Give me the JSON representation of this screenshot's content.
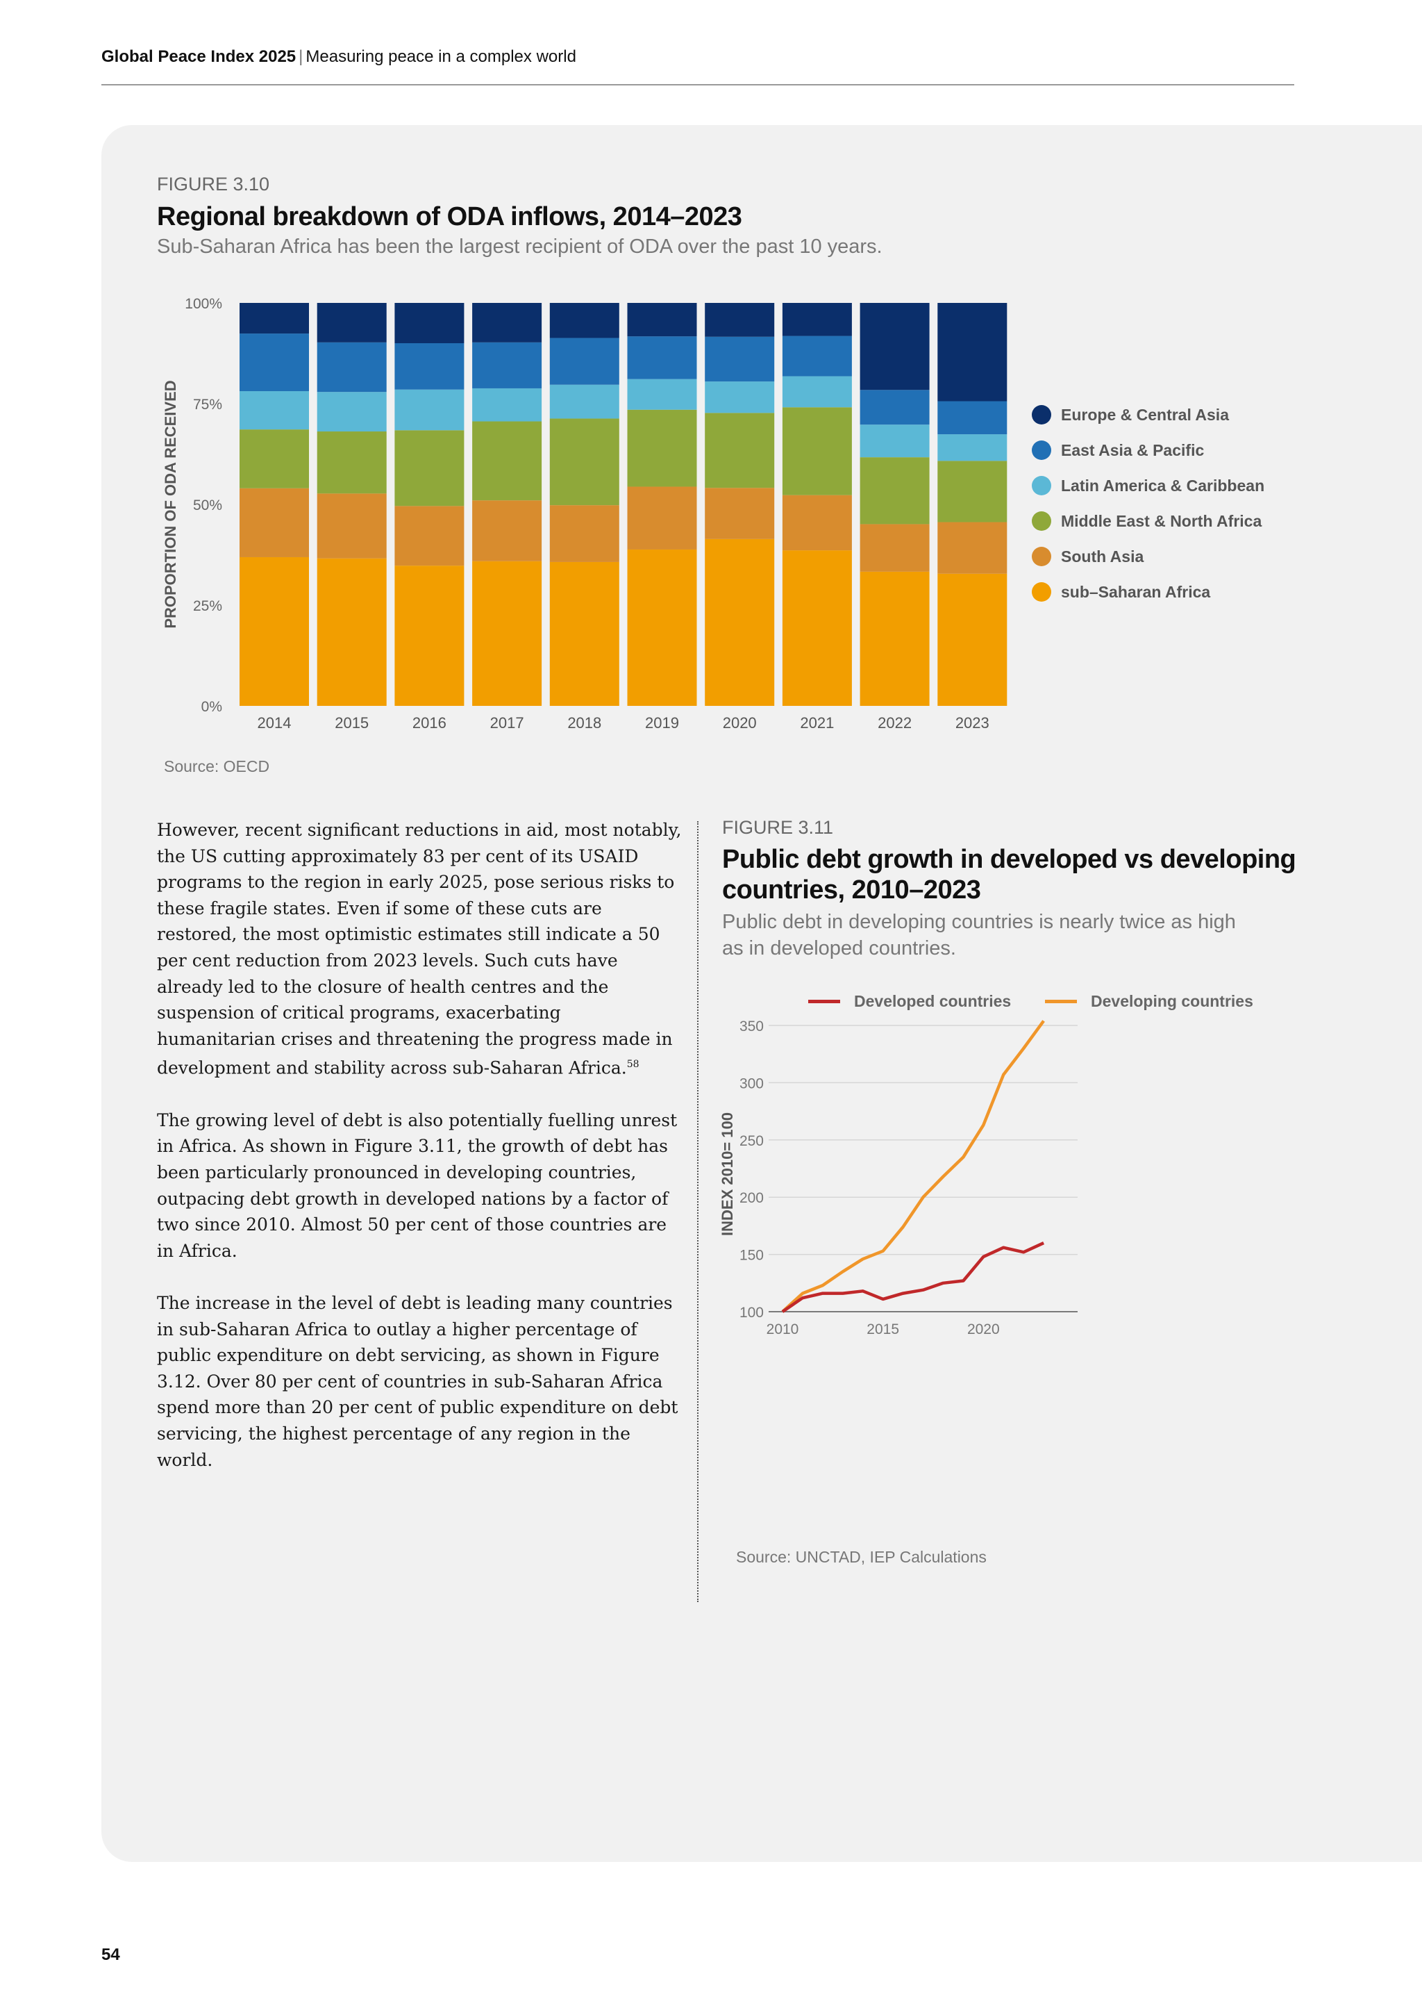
{
  "header": {
    "publication": "Global Peace Index 2025",
    "separator": "|",
    "section": "Measuring peace in a complex world"
  },
  "page_number": "54",
  "figure_310": {
    "label": "FIGURE 3.10",
    "source": "Source: OECD"
  },
  "figure_311": {
    "label": "FIGURE 3.11",
    "title_line1": "Public debt growth in developed vs developing",
    "title_line2": "countries, 2010–2023",
    "subtitle_line1": "Public debt in developing countries is nearly twice as high",
    "subtitle_line2": "as in developed countries.",
    "source": "Source: UNCTAD, IEP Calculations"
  },
  "body": {
    "p1": "However, recent significant reductions in aid, most notably, the US cutting approximately 83 per cent of its USAID programs to the region in early 2025, pose serious risks to these fragile states. Even if some of these cuts are restored, the most optimistic estimates still indicate a 50 per cent reduction from 2023 levels. Such cuts have already led to the closure of health centres and the suspension of critical programs, exacerbating humanitarian crises and threatening the progress made in development and stability across sub-Saharan Africa.",
    "p1_footnote": "58",
    "p2": "The growing level of debt is also potentially fuelling unrest in Africa. As shown in Figure 3.11, the growth of debt has been particularly pronounced in developing countries, outpacing debt growth in developed nations by a factor of two since 2010. Almost 50 per cent of those countries are in Africa.",
    "p3": "The increase in the level of debt is leading many countries in sub-Saharan Africa to outlay a higher percentage of public expenditure on debt servicing, as shown in Figure 3.12. Over 80 per cent of countries in sub-Saharan Africa spend more than 20 per cent of public expenditure on debt servicing, the highest percentage of any region in the world."
  },
  "chart_data": [
    {
      "type": "bar",
      "stacked": true,
      "title": "Regional breakdown of ODA inflows, 2014–2023",
      "subtitle": "Sub-Saharan Africa has been the largest recipient of ODA over the past 10 years.",
      "xlabel": "",
      "ylabel": "PROPORTION OF ODA RECEIVED",
      "ylim": [
        0,
        100
      ],
      "yticks": [
        "0%",
        "25%",
        "50%",
        "75%",
        "100%"
      ],
      "categories": [
        "2014",
        "2015",
        "2016",
        "2017",
        "2018",
        "2019",
        "2020",
        "2021",
        "2022",
        "2023"
      ],
      "legend_position": "right",
      "series": [
        {
          "name": "Europe & Central Asia",
          "color": "#0b2f6b",
          "values": [
            7.6,
            9.8,
            10.0,
            9.8,
            8.7,
            8.3,
            8.4,
            8.2,
            21.6,
            24.4
          ]
        },
        {
          "name": "East Asia & Pacific",
          "color": "#2170b5",
          "values": [
            14.3,
            12.3,
            11.5,
            11.4,
            11.6,
            10.6,
            11.1,
            10.0,
            8.6,
            8.2
          ]
        },
        {
          "name": "Latin America & Caribbean",
          "color": "#5bb8d6",
          "values": [
            9.5,
            9.8,
            10.1,
            8.2,
            8.4,
            7.6,
            7.8,
            7.7,
            8.1,
            6.6
          ]
        },
        {
          "name": "Middle East & North Africa",
          "color": "#8fa83a",
          "values": [
            14.6,
            15.4,
            18.8,
            19.6,
            21.5,
            19.1,
            18.6,
            21.8,
            16.6,
            15.2
          ]
        },
        {
          "name": "South Asia",
          "color": "#d88c2e",
          "values": [
            17.1,
            16.1,
            14.8,
            15.1,
            14.1,
            15.6,
            12.7,
            13.7,
            11.8,
            12.8
          ]
        },
        {
          "name": "sub–Saharan Africa",
          "color": "#f29e00",
          "values": [
            36.9,
            36.6,
            34.8,
            35.9,
            35.7,
            38.8,
            41.4,
            38.6,
            33.3,
            32.8
          ]
        }
      ]
    },
    {
      "type": "line",
      "title": "Public debt growth in developed vs developing countries, 2010–2023",
      "xlabel": "",
      "ylabel": "INDEX 2010= 100",
      "ylim": [
        100,
        350
      ],
      "yticks": [
        100,
        150,
        200,
        250,
        300,
        350
      ],
      "xticks": [
        2010,
        2015,
        2020
      ],
      "grid": true,
      "legend_position": "top",
      "x": [
        2010,
        2011,
        2012,
        2013,
        2014,
        2015,
        2016,
        2017,
        2018,
        2019,
        2020,
        2021,
        2022,
        2023
      ],
      "series": [
        {
          "name": "Developed countries",
          "color": "#c0282a",
          "values": [
            100,
            112,
            116,
            116,
            118,
            111,
            116,
            119,
            125,
            127,
            148,
            156,
            152,
            160
          ]
        },
        {
          "name": "Developing countries",
          "color": "#f0962a",
          "values": [
            100,
            116,
            123,
            135,
            146,
            153,
            174,
            200,
            218,
            235,
            263,
            307,
            330,
            354
          ]
        }
      ]
    }
  ]
}
